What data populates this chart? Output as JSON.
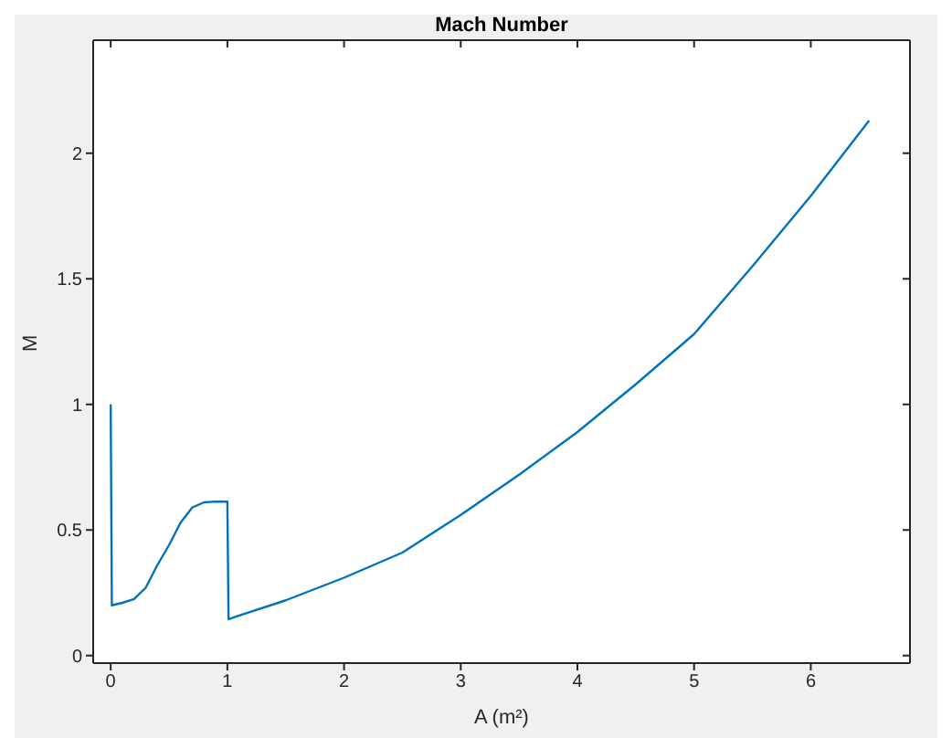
{
  "chart_data": {
    "type": "line",
    "title": "Mach Number",
    "xlabel": "A (m²)",
    "ylabel": "M",
    "x": [
      0,
      0.01,
      0.1,
      0.2,
      0.3,
      0.4,
      0.5,
      0.6,
      0.7,
      0.8,
      0.9,
      1.0,
      1.01,
      1.5,
      2,
      2.5,
      3,
      3.5,
      4,
      4.5,
      5,
      5.5,
      6,
      6.5
    ],
    "series": [
      {
        "color": "#0072bd",
        "values": [
          1,
          0.2,
          0.21,
          0.225,
          0.27,
          0.36,
          0.44,
          0.53,
          0.59,
          0.61,
          0.613,
          0.613,
          0.145,
          0.22,
          0.31,
          0.41,
          0.56,
          0.72,
          0.89,
          1.08,
          1.28,
          1.55,
          1.83,
          2.13
        ]
      }
    ],
    "xlim": [
      -0.15,
      6.85
    ],
    "xticks": [
      0,
      1,
      2,
      3,
      4,
      5,
      6
    ],
    "ylim": [
      -0.03,
      2.45
    ],
    "yticks": [
      0,
      0.5,
      1,
      1.5,
      2
    ],
    "legend": false,
    "marker": "none",
    "line_style": "solid"
  }
}
